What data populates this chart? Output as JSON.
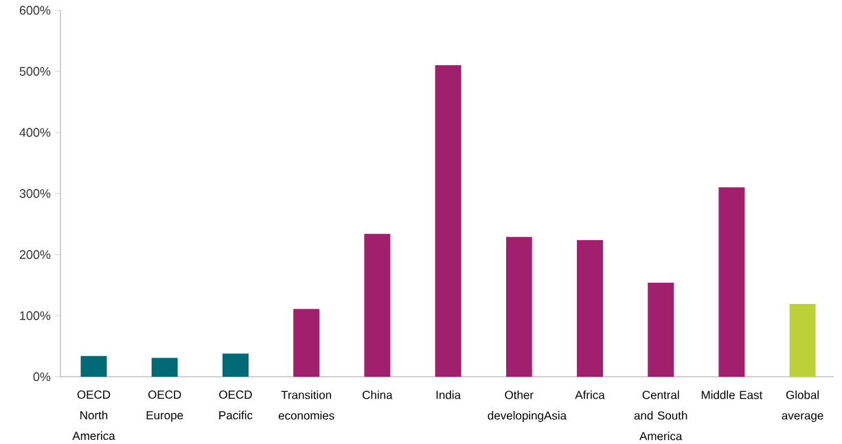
{
  "chart_data": {
    "type": "bar",
    "categories": [
      "OECD North America",
      "OECD Europe",
      "OECD Pacific",
      "Transition economies",
      "China",
      "India",
      "Other developingAsia",
      "Africa",
      "Central and South America",
      "Middle East",
      "Global average"
    ],
    "values": [
      34,
      31,
      38,
      111,
      234,
      510,
      229,
      224,
      154,
      310,
      119
    ],
    "colors": [
      "#006a77",
      "#006a77",
      "#006a77",
      "#a0206e",
      "#a0206e",
      "#a0206e",
      "#a0206e",
      "#a0206e",
      "#a0206e",
      "#a0206e",
      "#bcd03a"
    ],
    "ylim": [
      0,
      600
    ],
    "yticks": [
      {
        "value": 0,
        "label": "0%"
      },
      {
        "value": 100,
        "label": "100%"
      },
      {
        "value": 200,
        "label": "200%"
      },
      {
        "value": 300,
        "label": "300%"
      },
      {
        "value": 400,
        "label": "400%"
      },
      {
        "value": 500,
        "label": "500%"
      },
      {
        "value": 600,
        "label": "600%"
      }
    ],
    "grid": false
  }
}
